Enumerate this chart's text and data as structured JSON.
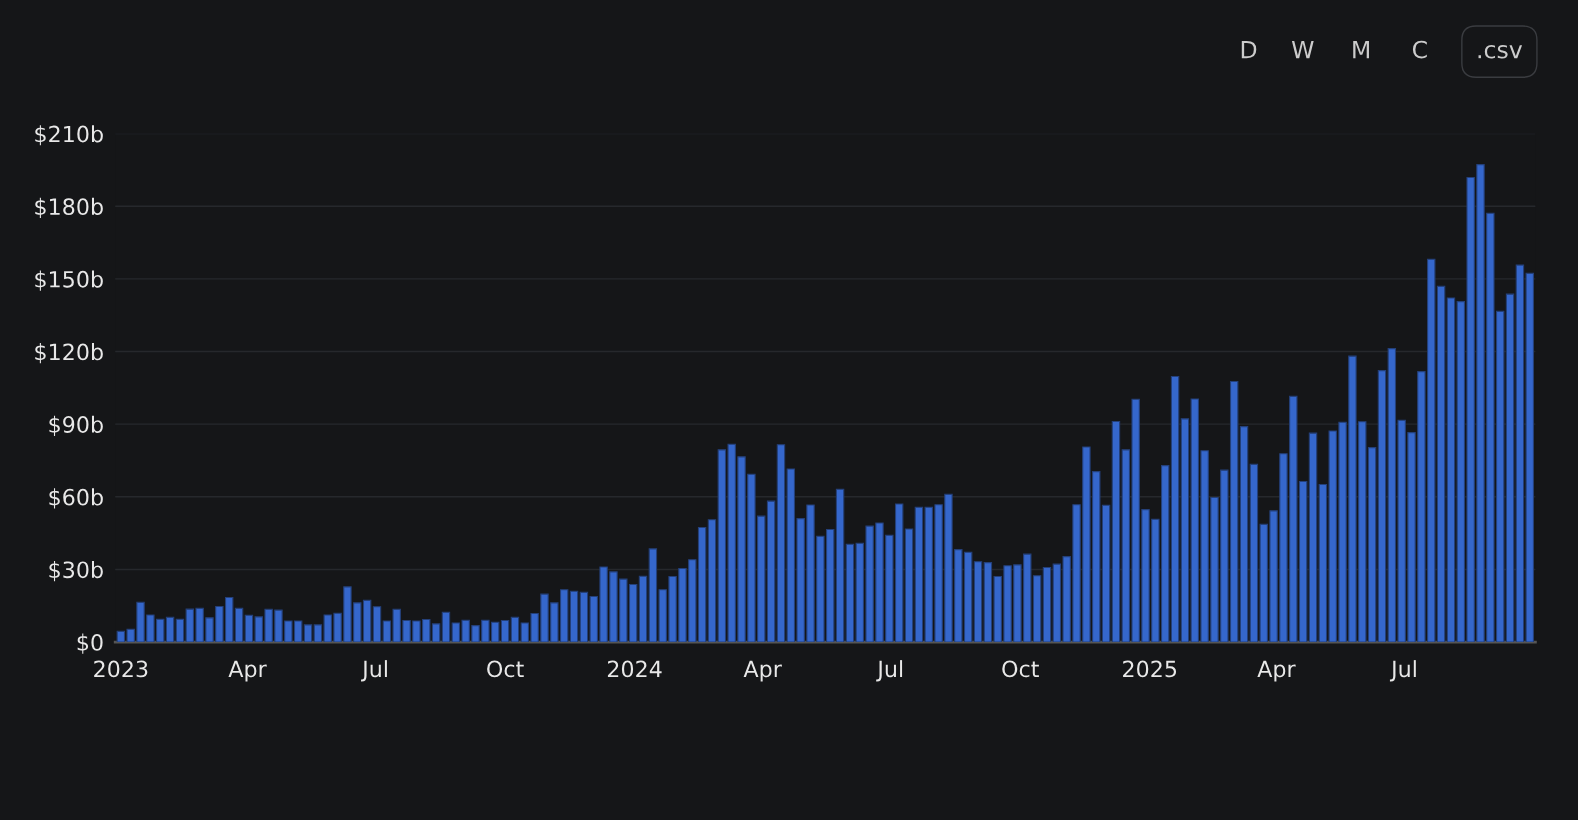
{
  "chart_data": {
    "type": "bar",
    "color": "#3567cc",
    "x": [
      "2023-01-01",
      "2023-01-08",
      "2023-01-15",
      "2023-01-22",
      "2023-01-29",
      "2023-02-05",
      "2023-02-12",
      "2023-02-19",
      "2023-02-26",
      "2023-03-05",
      "2023-03-12",
      "2023-03-19",
      "2023-03-26",
      "2023-04-02",
      "2023-04-09",
      "2023-04-16",
      "2023-04-23",
      "2023-04-30",
      "2023-05-07",
      "2023-05-14",
      "2023-05-21",
      "2023-05-28",
      "2023-06-04",
      "2023-06-11",
      "2023-06-18",
      "2023-06-25",
      "2023-07-02",
      "2023-07-09",
      "2023-07-16",
      "2023-07-23",
      "2023-07-30",
      "2023-08-06",
      "2023-08-13",
      "2023-08-20",
      "2023-08-27",
      "2023-09-03",
      "2023-09-10",
      "2023-09-17",
      "2023-09-24",
      "2023-10-01",
      "2023-10-08",
      "2023-10-15",
      "2023-10-22",
      "2023-10-29",
      "2023-11-05",
      "2023-11-12",
      "2023-11-19",
      "2023-11-26",
      "2023-12-03",
      "2023-12-10",
      "2023-12-17",
      "2023-12-24",
      "2023-12-31",
      "2024-01-07",
      "2024-01-14",
      "2024-01-21",
      "2024-01-28",
      "2024-02-04",
      "2024-02-11",
      "2024-02-18",
      "2024-02-25",
      "2024-03-03",
      "2024-03-10",
      "2024-03-17",
      "2024-03-24",
      "2024-03-31",
      "2024-04-07",
      "2024-04-14",
      "2024-04-21",
      "2024-04-28",
      "2024-05-05",
      "2024-05-12",
      "2024-05-19",
      "2024-05-26",
      "2024-06-02",
      "2024-06-09",
      "2024-06-16",
      "2024-06-23",
      "2024-06-30",
      "2024-07-07",
      "2024-07-14",
      "2024-07-21",
      "2024-07-28",
      "2024-08-04",
      "2024-08-11",
      "2024-08-18",
      "2024-08-25",
      "2024-09-01",
      "2024-09-08",
      "2024-09-15",
      "2024-09-22",
      "2024-09-29",
      "2024-10-06",
      "2024-10-13",
      "2024-10-20",
      "2024-10-27",
      "2024-11-03",
      "2024-11-10",
      "2024-11-17",
      "2024-11-24",
      "2024-12-01",
      "2024-12-08",
      "2024-12-15",
      "2024-12-22",
      "2024-12-29",
      "2025-01-05",
      "2025-01-12",
      "2025-01-19",
      "2025-01-26",
      "2025-02-02",
      "2025-02-09",
      "2025-02-16",
      "2025-02-23",
      "2025-03-02",
      "2025-03-09",
      "2025-03-16",
      "2025-03-23",
      "2025-03-30",
      "2025-04-06",
      "2025-04-13",
      "2025-04-20",
      "2025-04-27",
      "2025-05-04",
      "2025-05-11",
      "2025-05-18",
      "2025-05-25",
      "2025-06-01",
      "2025-06-08",
      "2025-06-15",
      "2025-06-22",
      "2025-06-29",
      "2025-07-06",
      "2025-07-13",
      "2025-07-20",
      "2025-07-27",
      "2025-08-03",
      "2025-08-10",
      "2025-08-17",
      "2025-08-24",
      "2025-08-31",
      "2025-09-07",
      "2025-09-14",
      "2025-09-21",
      "2025-09-28"
    ],
    "values": [
      4.4,
      5.3,
      16.4,
      11.2,
      9.4,
      10.2,
      9.4,
      13.6,
      13.9,
      10.0,
      14.7,
      18.4,
      13.9,
      11.1,
      10.4,
      13.5,
      13.2,
      8.7,
      8.7,
      7.1,
      7.1,
      11.2,
      11.9,
      22.8,
      16.2,
      17.2,
      14.6,
      8.7,
      13.5,
      8.9,
      8.7,
      9.3,
      7.5,
      12.3,
      7.9,
      9.0,
      6.8,
      9.0,
      8.2,
      8.9,
      10.2,
      7.9,
      11.8,
      19.8,
      16.2,
      21.6,
      21.0,
      20.5,
      18.8,
      31.0,
      29.0,
      26.0,
      23.8,
      27.2,
      38.5,
      21.6,
      27.1,
      30.4,
      34.0,
      47.3,
      50.5,
      79.4,
      81.7,
      76.5,
      69.3,
      52.0,
      58.2,
      81.5,
      71.5,
      51.0,
      56.6,
      43.7,
      46.5,
      63.1,
      40.4,
      40.8,
      47.9,
      49.2,
      44.1,
      57.0,
      46.7,
      55.7,
      55.7,
      56.7,
      61.0,
      38.2,
      37.1,
      33.2,
      32.8,
      27.1,
      31.5,
      31.9,
      36.3,
      27.4,
      30.8,
      32.2,
      35.3,
      56.7,
      80.6,
      70.4,
      56.5,
      91.1,
      79.4,
      100.3,
      54.7,
      50.7,
      72.9,
      109.7,
      92.2,
      100.4,
      79.0,
      59.7,
      71.0,
      107.6,
      89.0,
      73.4,
      48.6,
      54.2,
      77.8,
      101.5,
      66.3,
      86.3,
      65.1,
      87.2,
      90.8,
      118.1,
      91.0,
      80.3,
      112.1,
      121.2,
      91.6,
      86.5,
      111.7,
      158.1,
      146.9,
      142.1,
      140.6,
      191.9,
      197.2,
      177.1,
      136.6,
      143.7,
      155.7,
      152.3
    ],
    "xlim": [
      "2022-12-28",
      "2025-10-02"
    ],
    "xticks": [
      {
        "value": "2023-01-01",
        "label": "2023"
      },
      {
        "value": "2023-04-01",
        "label": "Apr"
      },
      {
        "value": "2023-07-01",
        "label": "Jul"
      },
      {
        "value": "2023-10-01",
        "label": "Oct"
      },
      {
        "value": "2024-01-01",
        "label": "2024"
      },
      {
        "value": "2024-04-01",
        "label": "Apr"
      },
      {
        "value": "2024-07-01",
        "label": "Jul"
      },
      {
        "value": "2024-10-01",
        "label": "Oct"
      },
      {
        "value": "2025-01-01",
        "label": "2025"
      },
      {
        "value": "2025-04-01",
        "label": "Apr"
      },
      {
        "value": "2025-07-01",
        "label": "Jul"
      }
    ],
    "ylim": [
      0,
      210
    ],
    "yticks": [
      {
        "value": 0,
        "label": "$0"
      },
      {
        "value": 30,
        "label": "$30b"
      },
      {
        "value": 60,
        "label": "$60b"
      },
      {
        "value": 90,
        "label": "$90b"
      },
      {
        "value": 120,
        "label": "$120b"
      },
      {
        "value": 150,
        "label": "$150b"
      },
      {
        "value": 180,
        "label": "$180b"
      },
      {
        "value": 210,
        "label": "$210b"
      }
    ],
    "grid": "y",
    "annotations": [
      "D",
      "W",
      "M",
      "C",
      ".csv"
    ]
  }
}
